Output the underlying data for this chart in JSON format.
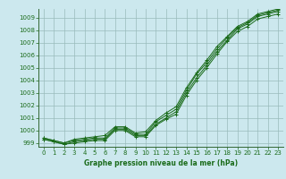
{
  "title": "Graphe pression niveau de la mer (hPa)",
  "background_color": "#cce8ee",
  "grid_color": "#99bbbb",
  "line_color": "#1a6b1a",
  "spine_color": "#336633",
  "xlim": [
    -0.5,
    23.5
  ],
  "ylim": [
    998.7,
    1009.7
  ],
  "yticks": [
    999,
    1000,
    1001,
    1002,
    1003,
    1004,
    1005,
    1006,
    1007,
    1008,
    1009
  ],
  "xticks": [
    0,
    1,
    2,
    3,
    4,
    5,
    6,
    7,
    8,
    9,
    10,
    11,
    12,
    13,
    14,
    15,
    16,
    17,
    18,
    19,
    20,
    21,
    22,
    23
  ],
  "series": [
    [
      999.3,
      999.1,
      998.9,
      999.0,
      999.1,
      999.2,
      999.2,
      1000.0,
      1000.0,
      999.5,
      999.5,
      1000.4,
      1000.9,
      1001.3,
      1002.8,
      1004.0,
      1005.0,
      1006.1,
      1007.1,
      1007.9,
      1008.3,
      1008.9,
      1009.1,
      1009.3
    ],
    [
      999.3,
      999.1,
      998.9,
      999.1,
      999.2,
      999.3,
      999.3,
      1000.1,
      1000.1,
      999.6,
      999.6,
      1000.5,
      1001.0,
      1001.5,
      1003.0,
      1004.2,
      1005.2,
      1006.3,
      1007.2,
      1008.1,
      1008.5,
      1009.1,
      1009.3,
      1009.5
    ],
    [
      999.4,
      999.2,
      999.0,
      999.2,
      999.3,
      999.4,
      999.4,
      1000.2,
      1000.2,
      999.7,
      999.7,
      1000.7,
      1001.2,
      1001.7,
      1003.2,
      1004.5,
      1005.4,
      1006.5,
      1007.4,
      1008.2,
      1008.6,
      1009.2,
      1009.4,
      1009.6
    ],
    [
      999.4,
      999.2,
      999.0,
      999.3,
      999.4,
      999.5,
      999.6,
      1000.3,
      1000.3,
      999.8,
      999.9,
      1000.8,
      1001.4,
      1001.9,
      1003.4,
      1004.6,
      1005.6,
      1006.7,
      1007.5,
      1008.3,
      1008.7,
      1009.3,
      1009.5,
      1009.7
    ]
  ]
}
